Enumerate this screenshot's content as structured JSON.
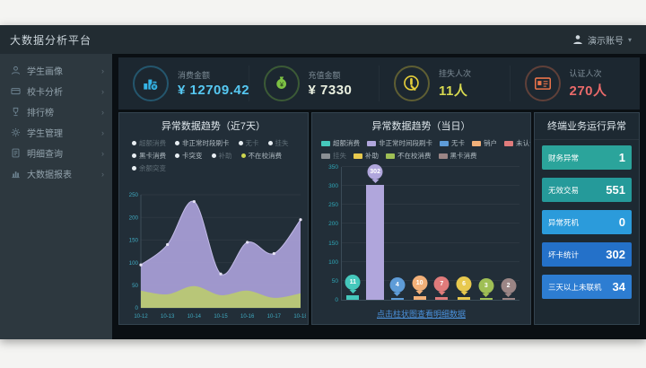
{
  "topbar": {
    "title": "大数据分析平台",
    "user": "演示账号",
    "caret": "▾"
  },
  "sidebar": {
    "chevron": "›",
    "items": [
      {
        "label": "学生画像",
        "icon": "user"
      },
      {
        "label": "校卡分析",
        "icon": "card"
      },
      {
        "label": "排行榜",
        "icon": "trophy"
      },
      {
        "label": "学生管理",
        "icon": "gear"
      },
      {
        "label": "明细查询",
        "icon": "doc"
      },
      {
        "label": "大数据报表",
        "icon": "report"
      }
    ]
  },
  "kpis": [
    {
      "label": "消费金额",
      "value": "¥ 12709.42",
      "value_color": "#56c8f2",
      "icon": "consume",
      "icon_color": "#35b5e8"
    },
    {
      "label": "充值金额",
      "value": "¥ 7330",
      "value_color": "#eaf0e0",
      "icon": "recharge",
      "icon_color": "#7cc043"
    },
    {
      "label": "挂失人次",
      "value": "11人",
      "value_color": "#d8da50",
      "icon": "loss",
      "icon_color": "#e4cd3a"
    },
    {
      "label": "认证人次",
      "value": "270人",
      "value_color": "#ea6a6a",
      "icon": "auth",
      "icon_color": "#e8734a"
    }
  ],
  "chart_data": [
    {
      "type": "area",
      "title": "异常数据趋势（近7天）",
      "x": [
        "10-12",
        "10-13",
        "10-14",
        "10-15",
        "10-16",
        "10-17",
        "10-18"
      ],
      "series": [
        {
          "name": "非正常时段刷卡",
          "color": "#a79dd4",
          "values": [
            95,
            140,
            235,
            75,
            145,
            120,
            195
          ]
        },
        {
          "name": "不在校消费",
          "color": "#b9c873",
          "values": [
            38,
            30,
            48,
            28,
            38,
            22,
            32
          ]
        }
      ],
      "ylim": [
        0,
        250
      ],
      "yticks": [
        0,
        50,
        100,
        150,
        200,
        250
      ],
      "grid": true,
      "legend_position": "top",
      "legend_rows": [
        [
          {
            "label": "超额消费",
            "dim": true
          },
          {
            "label": "非正常时段刷卡"
          },
          {
            "label": "无卡",
            "dim": true
          },
          {
            "label": "挂失",
            "dim": true
          }
        ],
        [
          {
            "label": "黑卡消费"
          },
          {
            "label": "卡突变"
          },
          {
            "label": "补助",
            "dim": true
          },
          {
            "label": "不在校消费",
            "bullet": "#cdd64f"
          }
        ],
        [
          {
            "label": "余额突变",
            "dim": true
          }
        ]
      ]
    },
    {
      "type": "bar",
      "title": "异常数据趋势（当日）",
      "categories": [
        "超额消费",
        "非正常时间段刷卡",
        "无卡",
        "销户",
        "未认证卡",
        "补助",
        "不在校消费",
        "黑卡消费"
      ],
      "values": [
        11,
        302,
        4,
        10,
        7,
        6,
        3,
        2
      ],
      "colors": [
        "#45c8bc",
        "#b0a6dc",
        "#5e9cd8",
        "#f2b079",
        "#e07b7b",
        "#e8c94e",
        "#9fbf55",
        "#9b8585"
      ],
      "ylim": [
        0,
        350
      ],
      "yticks": [
        0,
        50,
        100,
        150,
        200,
        250,
        300,
        350
      ],
      "grid": true,
      "legend_position": "top",
      "legend_rows": [
        [
          {
            "label": "超额消费",
            "color": "#45c8bc"
          },
          {
            "label": "非正常时间段刷卡",
            "color": "#b0a6dc"
          },
          {
            "label": "无卡",
            "color": "#5e9cd8"
          },
          {
            "label": "销户",
            "color": "#f2b079"
          },
          {
            "label": "未认证卡",
            "color": "#e07b7b"
          }
        ],
        [
          {
            "label": "挂失",
            "color": "#8a8f94",
            "dim": true
          },
          {
            "label": "补助",
            "color": "#e8c94e"
          },
          {
            "label": "不在校消费",
            "color": "#9fbf55"
          },
          {
            "label": "黑卡消费",
            "color": "#9b8585"
          }
        ]
      ],
      "footer_link": "点击柱状图查看明细数据"
    }
  ],
  "terminal_panel": {
    "title": "终端业务运行异常",
    "rows": [
      {
        "label": "财务异常",
        "value": "1",
        "color": "#2ba49b"
      },
      {
        "label": "无效交易",
        "value": "551",
        "color": "#259a9a"
      },
      {
        "label": "异常死机",
        "value": "0",
        "color": "#2b9bdb"
      },
      {
        "label": "坏卡统计",
        "value": "302",
        "color": "#2471c9"
      },
      {
        "label": "三天以上未联机",
        "value": "34",
        "color": "#2d7dd2"
      }
    ]
  }
}
